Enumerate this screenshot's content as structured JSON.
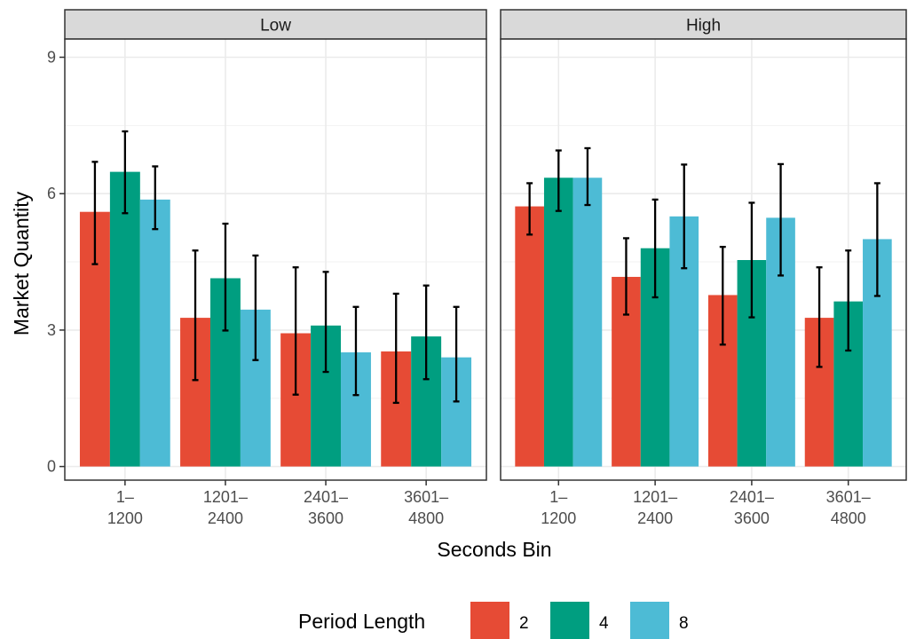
{
  "chart_data": {
    "type": "bar",
    "xlabel": "Seconds Bin",
    "ylabel": "Market Quantity",
    "ylim": [
      -0.3,
      9.4
    ],
    "yticks": [
      "0",
      "3",
      "6",
      "9"
    ],
    "categories": [
      {
        "line1": "1–",
        "line2": "1200"
      },
      {
        "line1": "1201–",
        "line2": "2400"
      },
      {
        "line1": "2401–",
        "line2": "3600"
      },
      {
        "line1": "3601–",
        "line2": "4800"
      }
    ],
    "legend": {
      "title": "Period Length",
      "position": "bottom",
      "entries": [
        "2",
        "4",
        "8"
      ]
    },
    "colors": {
      "2": "#E64B35",
      "4": "#009E80",
      "8": "#4DBBD5"
    },
    "grid": true,
    "panels": [
      {
        "name": "Low",
        "series": [
          {
            "name": "2",
            "values": [
              5.6,
              3.27,
              2.93,
              2.53
            ],
            "err_low": [
              4.45,
              1.9,
              1.58,
              1.4
            ],
            "err_high": [
              6.7,
              4.75,
              4.38,
              3.8
            ]
          },
          {
            "name": "4",
            "values": [
              6.48,
              4.14,
              3.1,
              2.86
            ],
            "err_low": [
              5.57,
              2.99,
              2.08,
              1.92
            ],
            "err_high": [
              7.37,
              5.34,
              4.28,
              3.98
            ]
          },
          {
            "name": "8",
            "values": [
              5.87,
              3.45,
              2.51,
              2.4
            ],
            "err_low": [
              5.22,
              2.34,
              1.57,
              1.43
            ],
            "err_high": [
              6.6,
              4.64,
              3.51,
              3.51
            ]
          }
        ]
      },
      {
        "name": "High",
        "series": [
          {
            "name": "2",
            "values": [
              5.72,
              4.17,
              3.77,
              3.27
            ],
            "err_low": [
              5.1,
              3.34,
              2.68,
              2.19
            ],
            "err_high": [
              6.23,
              5.02,
              4.83,
              4.38
            ]
          },
          {
            "name": "4",
            "values": [
              6.35,
              4.8,
              4.54,
              3.63
            ],
            "err_low": [
              5.62,
              3.72,
              3.28,
              2.55
            ],
            "err_high": [
              6.95,
              5.87,
              5.8,
              4.75
            ]
          },
          {
            "name": "8",
            "values": [
              6.35,
              5.5,
              5.47,
              5.0
            ],
            "err_low": [
              5.75,
              4.36,
              4.2,
              3.75
            ],
            "err_high": [
              7.0,
              6.64,
              6.65,
              6.23
            ]
          }
        ]
      }
    ]
  }
}
